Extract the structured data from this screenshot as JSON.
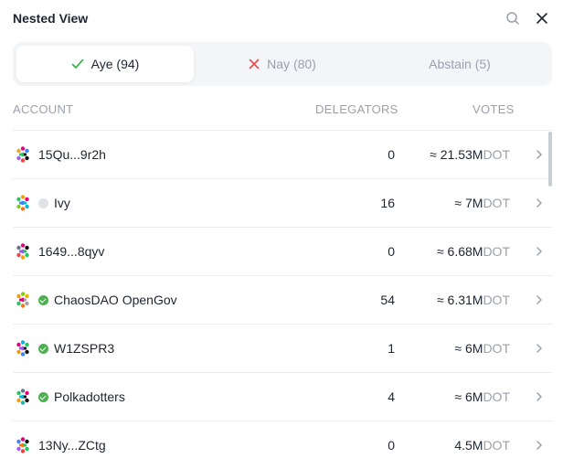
{
  "header": {
    "title": "Nested View"
  },
  "tabs": [
    {
      "label": "Aye (94)",
      "icon": "check-icon",
      "color": "#2fb344"
    },
    {
      "label": "Nay (80)",
      "icon": "x-icon",
      "color": "#e5484d"
    },
    {
      "label": "Abstain (5)"
    }
  ],
  "columns": {
    "account": "ACCOUNT",
    "delegators": "DELEGATORS",
    "votes": "VOTES"
  },
  "rows": [
    {
      "account": "15Qu...9r2h",
      "delegators": "0",
      "votes": "≈ 21.53M",
      "unit": "DOT",
      "badge": "none"
    },
    {
      "account": "Ivy",
      "delegators": "16",
      "votes": "≈ 7M",
      "unit": "DOT",
      "badge": "gray"
    },
    {
      "account": "1649...8qyv",
      "delegators": "0",
      "votes": "≈ 6.68M",
      "unit": "DOT",
      "badge": "none"
    },
    {
      "account": "ChaosDAO OpenGov",
      "delegators": "54",
      "votes": "≈ 6.31M",
      "unit": "DOT",
      "badge": "verified"
    },
    {
      "account": "W1ZSPR3",
      "delegators": "1",
      "votes": "≈ 6M",
      "unit": "DOT",
      "badge": "verified"
    },
    {
      "account": "Polkadotters",
      "delegators": "4",
      "votes": "≈ 6M",
      "unit": "DOT",
      "badge": "verified"
    },
    {
      "account": "13Ny...ZCtg",
      "delegators": "0",
      "votes": "4.5M",
      "unit": "DOT",
      "badge": "none"
    }
  ]
}
